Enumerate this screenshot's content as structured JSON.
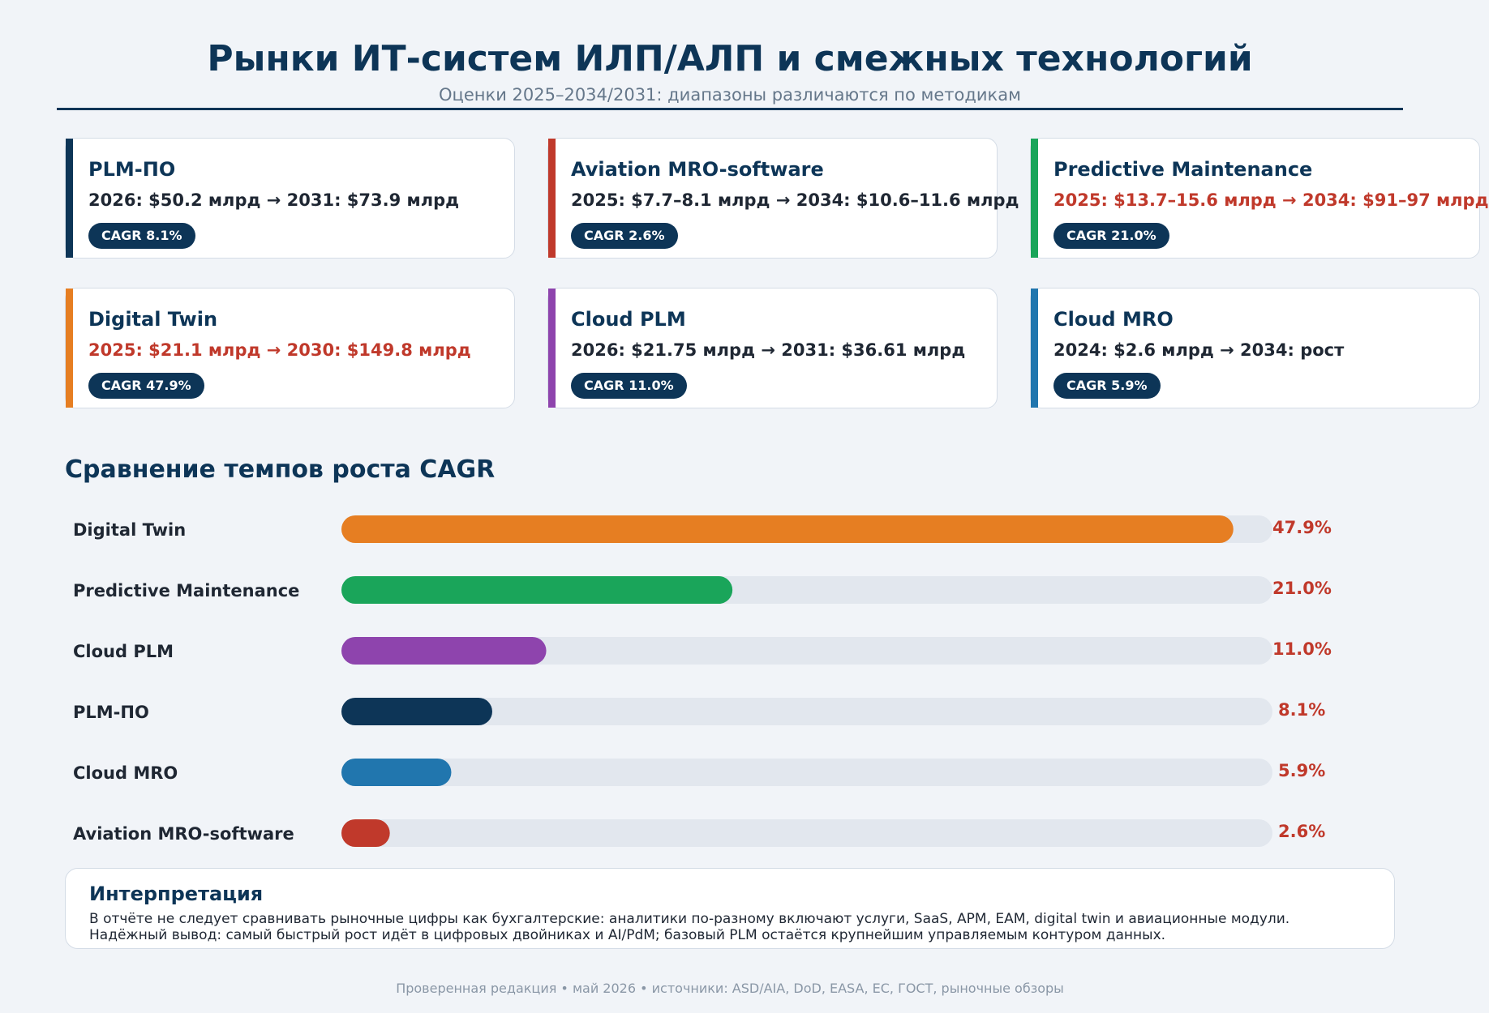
{
  "header": {
    "title": "Рынки ИТ-систем ИЛП/АЛП и смежных технологий",
    "subtitle": "Оценки 2025–2034/2031: диапазоны различаются по методикам"
  },
  "cards": [
    {
      "title": "PLM-ПО",
      "value": "2026: $50.2 млрд  →  2031: $73.9 млрд",
      "badge": "CAGR 8.1%",
      "accent": "#0d3557",
      "highlight": false
    },
    {
      "title": "Aviation MRO-software",
      "value": "2025: $7.7–8.1 млрд  →  2034: $10.6–11.6 млрд",
      "badge": "CAGR 2.6%",
      "accent": "#c0392b",
      "highlight": false
    },
    {
      "title": "Predictive Maintenance",
      "value": "2025: $13.7–15.6 млрд  →  2034: $91–97 млрд",
      "badge": "CAGR 21.0%",
      "accent": "#1aa55a",
      "highlight": true
    },
    {
      "title": "Digital Twin",
      "value": "2025: $21.1 млрд  →  2030: $149.8 млрд",
      "badge": "CAGR 47.9%",
      "accent": "#e67e22",
      "highlight": true
    },
    {
      "title": "Cloud PLM",
      "value": "2026: $21.75 млрд  →  2031: $36.61 млрд",
      "badge": "CAGR 11.0%",
      "accent": "#8e44ad",
      "highlight": false
    },
    {
      "title": "Cloud MRO",
      "value": "2024: $2.6 млрд  →  2034: рост",
      "badge": "CAGR 5.9%",
      "accent": "#2176ae",
      "highlight": false
    }
  ],
  "chart_data": {
    "type": "bar",
    "title": "Сравнение темпов роста CAGR",
    "orientation": "horizontal",
    "unit": "%",
    "xlim": [
      0,
      50
    ],
    "categories": [
      "Digital Twin",
      "Predictive Maintenance",
      "Cloud PLM",
      "PLM-ПО",
      "Cloud MRO",
      "Aviation MRO-software"
    ],
    "values": [
      47.9,
      21.0,
      11.0,
      8.1,
      5.9,
      2.6
    ],
    "value_labels": [
      "47.9%",
      "21.0%",
      "11.0%",
      "8.1%",
      "5.9%",
      "2.6%"
    ],
    "colors": [
      "#e67e22",
      "#1aa55a",
      "#8e44ad",
      "#0d3557",
      "#2176ae",
      "#c0392b"
    ],
    "track_color": "#e2e7ee"
  },
  "interpretation": {
    "title": "Интерпретация",
    "line1": "В отчёте не следует сравнивать рыночные цифры как бухгалтерские: аналитики по-разному включают услуги, SaaS, APM, EAM, digital twin и авиационные модули.",
    "line2": "Надёжный вывод: самый быстрый рост идёт в цифровых двойниках и AI/PdM; базовый PLM остаётся крупнейшим управляемым контуром данных."
  },
  "footer": "Проверенная редакция • май 2026 • источники: ASD/AIA, DoD, EASA, EC, ГОСТ, рыночные обзоры"
}
